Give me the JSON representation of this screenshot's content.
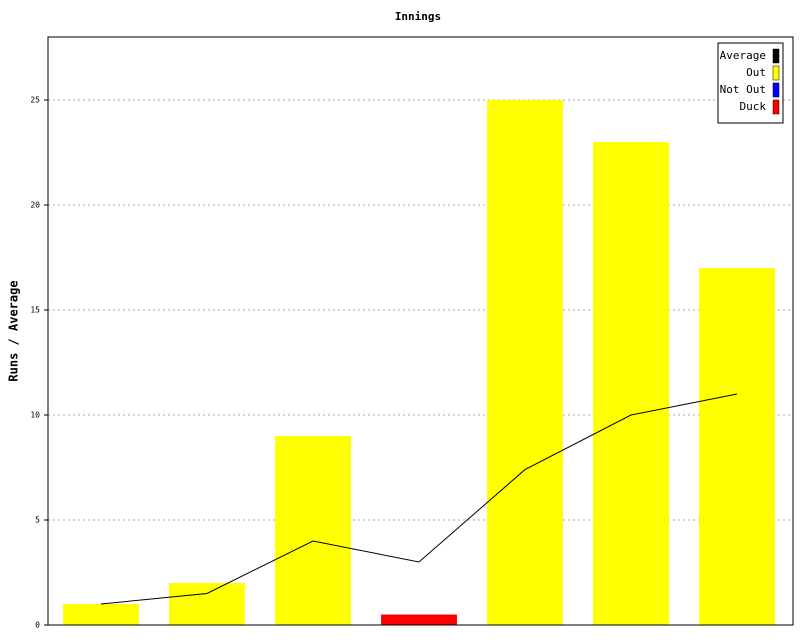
{
  "chart_data": {
    "type": "bar",
    "title": "Innings",
    "y_label": "Runs / Average",
    "categories": [
      null,
      null,
      null,
      null,
      null,
      null,
      null
    ],
    "series": [
      {
        "name": "Average",
        "color": "#000000",
        "type": "line",
        "values": [
          1,
          1.5,
          4,
          3,
          7.4,
          10,
          11
        ]
      },
      {
        "name": "Out",
        "color": "#ffff00",
        "type": "bar",
        "values": [
          1,
          2,
          9,
          null,
          25,
          23,
          17
        ]
      },
      {
        "name": "Not Out",
        "color": "#0000ff",
        "type": "bar",
        "values": [
          null,
          null,
          null,
          null,
          null,
          null,
          null
        ]
      },
      {
        "name": "Duck",
        "color": "#ff0000",
        "type": "bar",
        "values": [
          null,
          null,
          null,
          0.5,
          null,
          null,
          null
        ]
      }
    ],
    "ylim": [
      0,
      28
    ],
    "yticks": [
      0,
      5,
      10,
      15,
      20,
      25
    ],
    "grid": true,
    "legend": "top-right"
  }
}
